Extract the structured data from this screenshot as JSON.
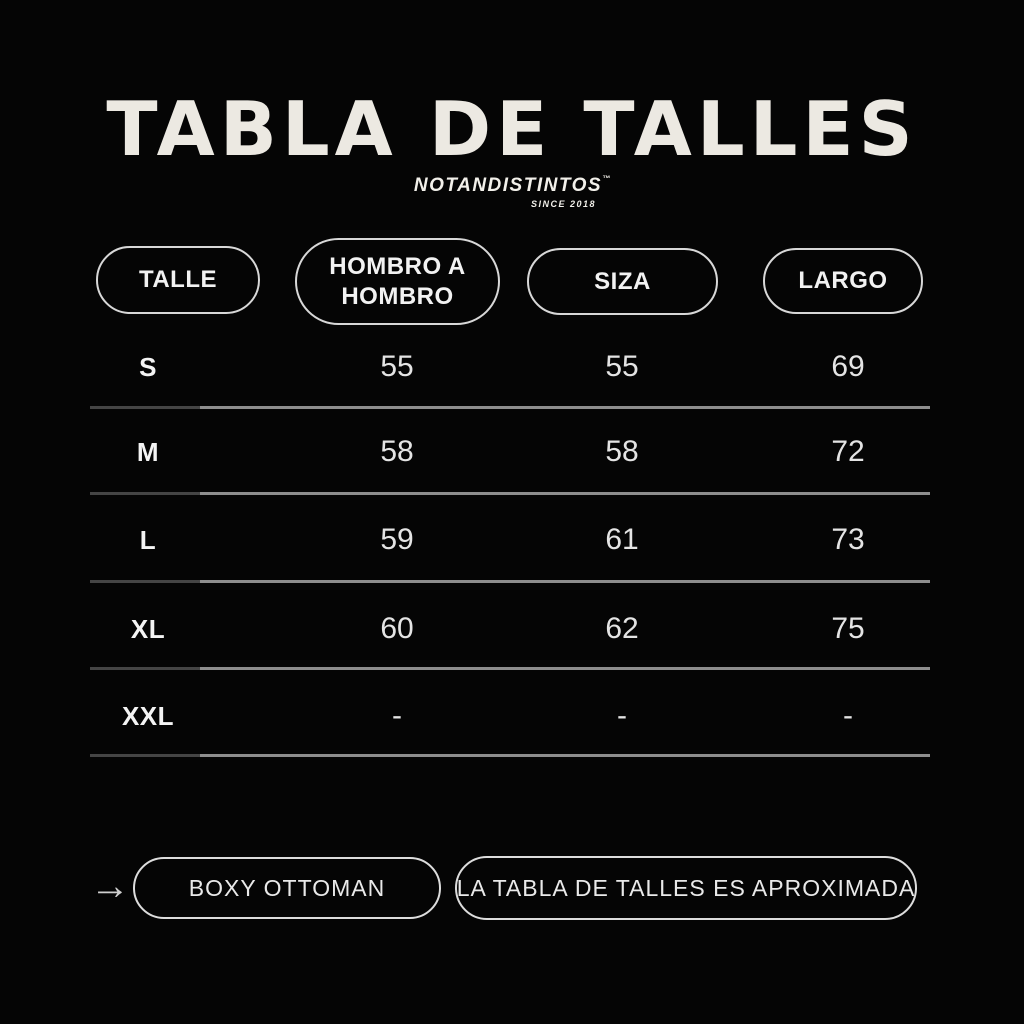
{
  "title": "TABLA DE TALLES",
  "brand": {
    "wordmark": "NOTANDISTINTOS",
    "trademark": "™",
    "tagline": "SINCE 2018"
  },
  "table": {
    "headers": [
      "TALLE",
      "HOMBRO A HOMBRO",
      "SIZA",
      "LARGO"
    ],
    "rows": [
      {
        "talle": "S",
        "hombro_a_hombro": "55",
        "siza": "55",
        "largo": "69"
      },
      {
        "talle": "M",
        "hombro_a_hombro": "58",
        "siza": "58",
        "largo": "72"
      },
      {
        "talle": "L",
        "hombro_a_hombro": "59",
        "siza": "61",
        "largo": "73"
      },
      {
        "talle": "XL",
        "hombro_a_hombro": "60",
        "siza": "62",
        "largo": "75"
      },
      {
        "talle": "XXL",
        "hombro_a_hombro": "-",
        "siza": "-",
        "largo": "-"
      }
    ]
  },
  "footer": {
    "arrow": "→",
    "fit_label": "BOXY OTTOMAN",
    "note": "LA TABLA DE TALLES ES APROXIMADA"
  },
  "colors": {
    "background": "#050505",
    "title_text": "#ECE9E2",
    "pill_border": "#D8D8D8",
    "value_text": "#E4E4E4",
    "divider_dark": "#454545",
    "divider_light": "#8E8E8E"
  }
}
